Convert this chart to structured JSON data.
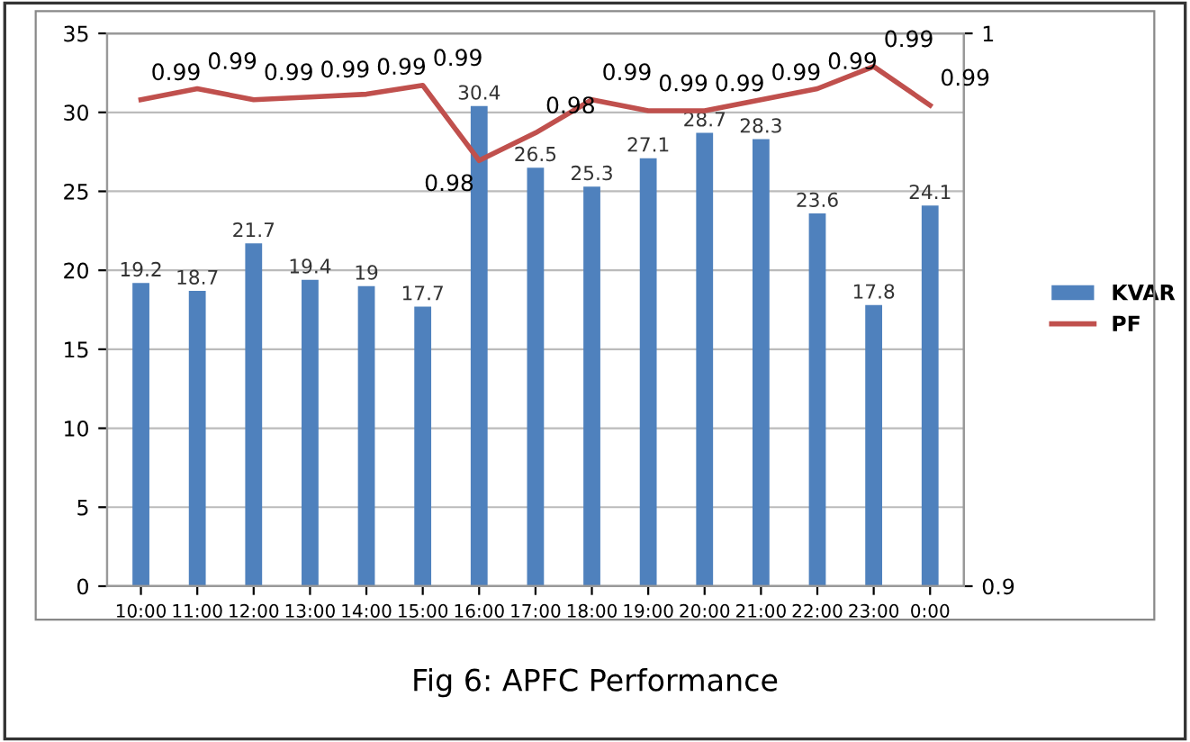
{
  "chart_data": {
    "type": "bar",
    "title": "Fig 6: APFC Performance",
    "categories": [
      "10:00",
      "11:00",
      "12:00",
      "13:00",
      "14:00",
      "15:00",
      "16:00",
      "17:00",
      "18:00",
      "19:00",
      "20:00",
      "21:00",
      "22:00",
      "23:00",
      "0:00"
    ],
    "series": [
      {
        "name": "KVAR",
        "color": "#4f81bd",
        "values": [
          19.2,
          18.7,
          21.7,
          19.4,
          19,
          17.7,
          30.4,
          26.5,
          25.3,
          27.1,
          28.7,
          28.3,
          23.6,
          17.8,
          24.1
        ],
        "data_labels": true
      },
      {
        "name": "PF",
        "type": "line",
        "axis": "y2",
        "color": "#c0504d",
        "values": [
          0.988,
          0.99,
          0.988,
          0.9885,
          0.989,
          0.9906,
          0.977,
          0.982,
          0.988,
          0.986,
          0.986,
          0.988,
          0.99,
          0.994,
          0.987
        ],
        "value_labels": [
          "0.99",
          "0.99",
          "0.99",
          "0.99",
          "0.99",
          "0.99",
          "0.98",
          "0.98",
          "0.99",
          "0.99",
          "0.99",
          "0.99",
          "0.99",
          "0.99",
          "0.99"
        ]
      }
    ],
    "ylim": [
      0,
      35
    ],
    "yticks": [
      0,
      5,
      10,
      15,
      20,
      25,
      30,
      35
    ],
    "y2lim": [
      0.9,
      1
    ],
    "y2ticks": [
      0.9,
      1
    ],
    "grid": "y",
    "legend": "right",
    "marker": "none",
    "line_style": "solid"
  }
}
